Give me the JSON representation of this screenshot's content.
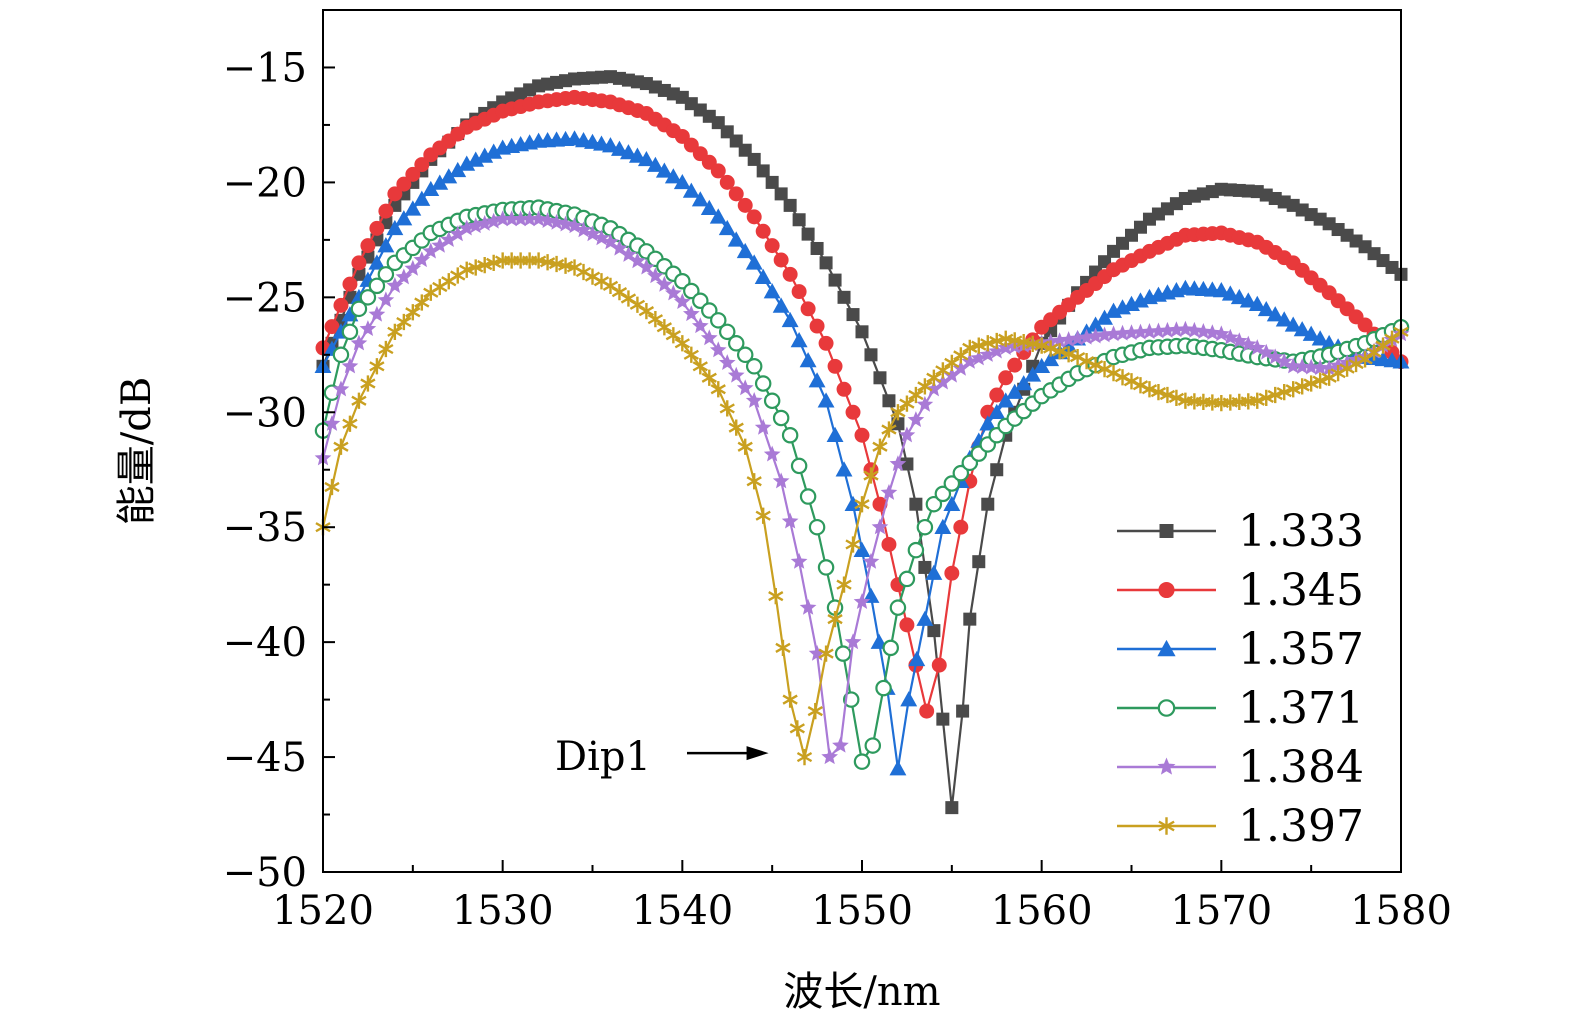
{
  "chart_data": {
    "type": "line",
    "title": "",
    "xlabel": "波长/nm",
    "ylabel": "能量/dB",
    "xlim": [
      1520,
      1580
    ],
    "ylim": [
      -50,
      -12.5
    ],
    "xticks": [
      1520,
      1530,
      1540,
      1550,
      1560,
      1570,
      1580
    ],
    "yticks": [
      -50,
      -45,
      -40,
      -35,
      -30,
      -25,
      -20,
      -15
    ],
    "tick_labels_x": [
      "1520",
      "1530",
      "1540",
      "1550",
      "1560",
      "1570",
      "1580"
    ],
    "tick_labels_y": [
      "−50",
      "−45",
      "−40",
      "−35",
      "−30",
      "−25",
      "−20",
      "−15"
    ],
    "grid": false,
    "legend_position": "bottom-right",
    "series": [
      {
        "name": "1.333",
        "color": "#4a4a4a",
        "marker": "square",
        "points": [
          [
            1520,
            -28
          ],
          [
            1522,
            -24
          ],
          [
            1524,
            -21
          ],
          [
            1526,
            -19
          ],
          [
            1528,
            -17.5
          ],
          [
            1530,
            -16.5
          ],
          [
            1532,
            -15.8
          ],
          [
            1534,
            -15.5
          ],
          [
            1536,
            -15.4
          ],
          [
            1538,
            -15.7
          ],
          [
            1540,
            -16.3
          ],
          [
            1542,
            -17.4
          ],
          [
            1544,
            -19
          ],
          [
            1546,
            -21
          ],
          [
            1548,
            -23.5
          ],
          [
            1550,
            -26.5
          ],
          [
            1552,
            -30.5
          ],
          [
            1553,
            -34
          ],
          [
            1554,
            -39.5
          ],
          [
            1555,
            -47.2
          ],
          [
            1555.6,
            -43
          ],
          [
            1556,
            -39
          ],
          [
            1557,
            -34
          ],
          [
            1558,
            -31
          ],
          [
            1559,
            -29
          ],
          [
            1560,
            -27
          ],
          [
            1562,
            -24.8
          ],
          [
            1564,
            -23
          ],
          [
            1566,
            -21.6
          ],
          [
            1568,
            -20.7
          ],
          [
            1570,
            -20.3
          ],
          [
            1572,
            -20.4
          ],
          [
            1574,
            -21
          ],
          [
            1576,
            -21.8
          ],
          [
            1578,
            -22.8
          ],
          [
            1580,
            -24
          ]
        ]
      },
      {
        "name": "1.345",
        "color": "#e8393b",
        "marker": "circle",
        "points": [
          [
            1520,
            -27.2
          ],
          [
            1522,
            -23.5
          ],
          [
            1524,
            -20.5
          ],
          [
            1526,
            -18.8
          ],
          [
            1528,
            -17.6
          ],
          [
            1530,
            -16.9
          ],
          [
            1532,
            -16.5
          ],
          [
            1534,
            -16.3
          ],
          [
            1536,
            -16.5
          ],
          [
            1538,
            -17
          ],
          [
            1540,
            -18
          ],
          [
            1542,
            -19.5
          ],
          [
            1544,
            -21.5
          ],
          [
            1546,
            -24
          ],
          [
            1548,
            -27
          ],
          [
            1550,
            -31
          ],
          [
            1551,
            -34
          ],
          [
            1552,
            -37.5
          ],
          [
            1553,
            -41
          ],
          [
            1553.6,
            -43
          ],
          [
            1554.3,
            -41
          ],
          [
            1555,
            -37
          ],
          [
            1556,
            -33
          ],
          [
            1557,
            -30
          ],
          [
            1558,
            -28.5
          ],
          [
            1560,
            -26.3
          ],
          [
            1562,
            -25
          ],
          [
            1564,
            -23.8
          ],
          [
            1566,
            -23
          ],
          [
            1568,
            -22.3
          ],
          [
            1570,
            -22.2
          ],
          [
            1572,
            -22.6
          ],
          [
            1574,
            -23.5
          ],
          [
            1576,
            -24.8
          ],
          [
            1578,
            -26.2
          ],
          [
            1580,
            -27.8
          ]
        ]
      },
      {
        "name": "1.357",
        "color": "#1f6fd6",
        "marker": "triangle",
        "points": [
          [
            1520,
            -28
          ],
          [
            1522,
            -25
          ],
          [
            1524,
            -22
          ],
          [
            1526,
            -20.3
          ],
          [
            1528,
            -19.2
          ],
          [
            1530,
            -18.5
          ],
          [
            1532,
            -18.2
          ],
          [
            1534,
            -18.1
          ],
          [
            1536,
            -18.4
          ],
          [
            1538,
            -19
          ],
          [
            1540,
            -20
          ],
          [
            1542,
            -21.5
          ],
          [
            1544,
            -23.5
          ],
          [
            1546,
            -26
          ],
          [
            1548,
            -29.5
          ],
          [
            1549.5,
            -34
          ],
          [
            1550.5,
            -38
          ],
          [
            1551.4,
            -42
          ],
          [
            1552,
            -45.5
          ],
          [
            1552.6,
            -42.5
          ],
          [
            1553.5,
            -39
          ],
          [
            1554.5,
            -35
          ],
          [
            1556,
            -32
          ],
          [
            1557,
            -30.5
          ],
          [
            1558,
            -29.5
          ],
          [
            1560,
            -28
          ],
          [
            1562,
            -26.8
          ],
          [
            1564,
            -25.6
          ],
          [
            1566,
            -25
          ],
          [
            1568,
            -24.6
          ],
          [
            1570,
            -24.7
          ],
          [
            1572,
            -25.3
          ],
          [
            1574,
            -26.2
          ],
          [
            1576,
            -27
          ],
          [
            1578,
            -27.6
          ],
          [
            1580,
            -27.8
          ]
        ]
      },
      {
        "name": "1.371",
        "color": "#2e9a5e",
        "marker": "circle-open",
        "points": [
          [
            1520,
            -30.8
          ],
          [
            1521,
            -27.5
          ],
          [
            1522,
            -25.5
          ],
          [
            1524,
            -23.5
          ],
          [
            1526,
            -22.2
          ],
          [
            1528,
            -21.5
          ],
          [
            1530,
            -21.2
          ],
          [
            1532,
            -21.1
          ],
          [
            1534,
            -21.4
          ],
          [
            1536,
            -22
          ],
          [
            1538,
            -23
          ],
          [
            1540,
            -24.3
          ],
          [
            1542,
            -26
          ],
          [
            1544,
            -28
          ],
          [
            1546,
            -31
          ],
          [
            1547.5,
            -35
          ],
          [
            1548.5,
            -38.5
          ],
          [
            1549.4,
            -42.5
          ],
          [
            1550,
            -45.2
          ],
          [
            1550.6,
            -44.5
          ],
          [
            1551.2,
            -42
          ],
          [
            1552,
            -38.5
          ],
          [
            1553,
            -36
          ],
          [
            1554,
            -34
          ],
          [
            1556,
            -32.2
          ],
          [
            1558,
            -30.6
          ],
          [
            1560,
            -29.3
          ],
          [
            1562,
            -28.3
          ],
          [
            1564,
            -27.6
          ],
          [
            1566,
            -27.2
          ],
          [
            1568,
            -27.1
          ],
          [
            1570,
            -27.3
          ],
          [
            1572,
            -27.6
          ],
          [
            1574,
            -27.8
          ],
          [
            1576,
            -27.5
          ],
          [
            1578,
            -27
          ],
          [
            1580,
            -26.3
          ]
        ]
      },
      {
        "name": "1.384",
        "color": "#a97ad6",
        "marker": "star",
        "points": [
          [
            1520,
            -32
          ],
          [
            1521,
            -29
          ],
          [
            1522,
            -27
          ],
          [
            1524,
            -24.5
          ],
          [
            1526,
            -23
          ],
          [
            1528,
            -22
          ],
          [
            1530,
            -21.6
          ],
          [
            1532,
            -21.6
          ],
          [
            1534,
            -21.9
          ],
          [
            1536,
            -22.6
          ],
          [
            1538,
            -23.7
          ],
          [
            1540,
            -25.2
          ],
          [
            1542,
            -27.3
          ],
          [
            1544,
            -29.5
          ],
          [
            1545.5,
            -33
          ],
          [
            1546.5,
            -36.5
          ],
          [
            1547.5,
            -40.5
          ],
          [
            1548.2,
            -45
          ],
          [
            1548.8,
            -44.5
          ],
          [
            1549.5,
            -40
          ],
          [
            1550.5,
            -36.5
          ],
          [
            1551.5,
            -33.5
          ],
          [
            1552.5,
            -31
          ],
          [
            1554,
            -29
          ],
          [
            1556,
            -27.8
          ],
          [
            1558,
            -27.2
          ],
          [
            1560,
            -27
          ],
          [
            1562,
            -26.8
          ],
          [
            1564,
            -26.6
          ],
          [
            1566,
            -26.5
          ],
          [
            1568,
            -26.4
          ],
          [
            1570,
            -26.6
          ],
          [
            1572,
            -27.2
          ],
          [
            1574,
            -28
          ],
          [
            1576,
            -28.1
          ],
          [
            1578,
            -27.6
          ],
          [
            1580,
            -26.6
          ]
        ]
      },
      {
        "name": "1.397",
        "color": "#c9a020",
        "marker": "asterisk",
        "points": [
          [
            1520,
            -35
          ],
          [
            1521,
            -31.5
          ],
          [
            1522,
            -29.5
          ],
          [
            1524,
            -26.5
          ],
          [
            1526,
            -24.8
          ],
          [
            1528,
            -23.8
          ],
          [
            1530,
            -23.4
          ],
          [
            1532,
            -23.4
          ],
          [
            1534,
            -23.7
          ],
          [
            1536,
            -24.5
          ],
          [
            1538,
            -25.6
          ],
          [
            1540,
            -27
          ],
          [
            1542,
            -29
          ],
          [
            1543.5,
            -31.5
          ],
          [
            1544.5,
            -34.5
          ],
          [
            1545.2,
            -38
          ],
          [
            1546,
            -42.5
          ],
          [
            1546.8,
            -45
          ],
          [
            1547.4,
            -43
          ],
          [
            1548,
            -40.5
          ],
          [
            1549,
            -37.5
          ],
          [
            1550,
            -34
          ],
          [
            1551,
            -31.5
          ],
          [
            1552,
            -30
          ],
          [
            1554,
            -28.5
          ],
          [
            1556,
            -27.2
          ],
          [
            1558,
            -26.8
          ],
          [
            1560,
            -27.1
          ],
          [
            1562,
            -27.6
          ],
          [
            1564,
            -28.3
          ],
          [
            1566,
            -29
          ],
          [
            1568,
            -29.5
          ],
          [
            1570,
            -29.6
          ],
          [
            1572,
            -29.5
          ],
          [
            1574,
            -29
          ],
          [
            1576,
            -28.5
          ],
          [
            1578,
            -27.7
          ],
          [
            1580,
            -26.5
          ]
        ]
      }
    ],
    "annotations": [
      {
        "text": "Dip1",
        "at": [
          1544.8,
          -45
        ]
      }
    ]
  }
}
